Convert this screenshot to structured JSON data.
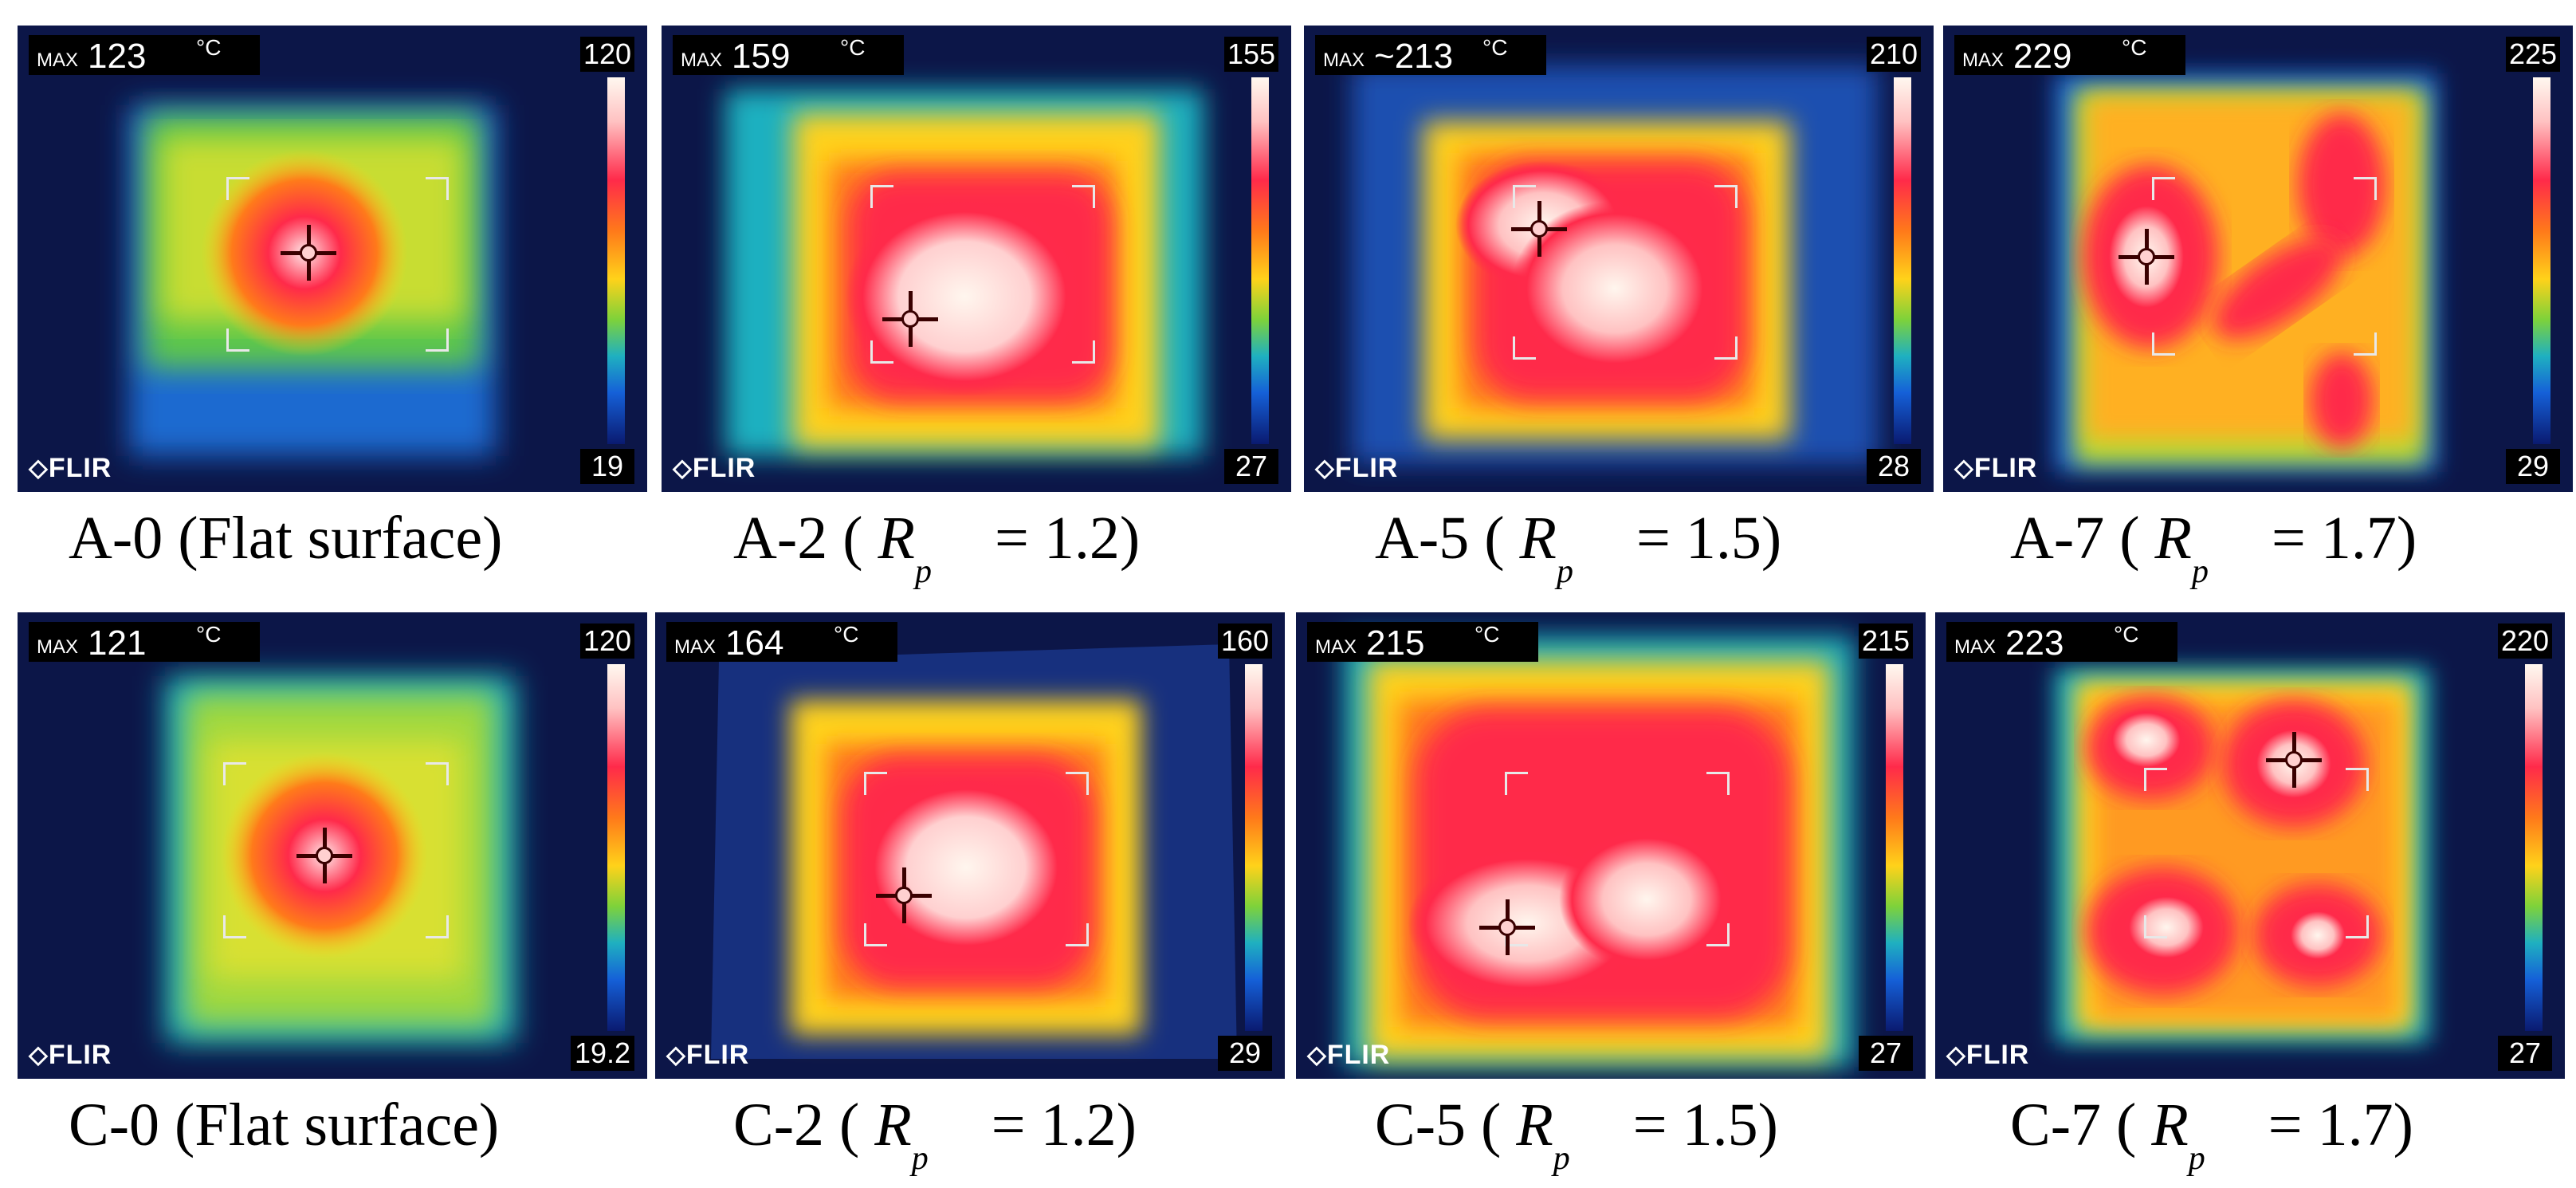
{
  "panels": [
    {
      "id": "A-0",
      "max_label": "MAX",
      "max_value": "123",
      "unit": "°C",
      "scale_max": "120",
      "scale_min": "19",
      "brand": "FLIR",
      "caption_prefix": "A-0 (Flat surface)",
      "caption_symbol": "",
      "caption_sub": "",
      "caption_suffix": ""
    },
    {
      "id": "A-2",
      "max_label": "MAX",
      "max_value": "159",
      "unit": "°C",
      "scale_max": "155",
      "scale_min": "27",
      "brand": "FLIR",
      "caption_prefix": "A-2 (",
      "caption_symbol": "R",
      "caption_sub": "p",
      "caption_suffix": "= 1.2)"
    },
    {
      "id": "A-5",
      "max_label": "MAX",
      "max_value": "~213",
      "unit": "°C",
      "scale_max": "210",
      "scale_min": "28",
      "brand": "FLIR",
      "caption_prefix": "A-5 (",
      "caption_symbol": "R",
      "caption_sub": "p",
      "caption_suffix": "= 1.5)"
    },
    {
      "id": "A-7",
      "max_label": "MAX",
      "max_value": "229",
      "unit": "°C",
      "scale_max": "225",
      "scale_min": "29",
      "brand": "FLIR",
      "caption_prefix": "A-7 (",
      "caption_symbol": "R",
      "caption_sub": "p",
      "caption_suffix": "= 1.7)"
    },
    {
      "id": "C-0",
      "max_label": "MAX",
      "max_value": "121",
      "unit": "°C",
      "scale_max": "120",
      "scale_min": "19.2",
      "brand": "FLIR",
      "caption_prefix": "C-0 (Flat surface)",
      "caption_symbol": "",
      "caption_sub": "",
      "caption_suffix": ""
    },
    {
      "id": "C-2",
      "max_label": "MAX",
      "max_value": "164",
      "unit": "°C",
      "scale_max": "160",
      "scale_min": "29",
      "brand": "FLIR",
      "caption_prefix": "C-2 (",
      "caption_symbol": "R",
      "caption_sub": "p",
      "caption_suffix": "= 1.2)"
    },
    {
      "id": "C-5",
      "max_label": "MAX",
      "max_value": "215",
      "unit": "°C",
      "scale_max": "215",
      "scale_min": "27",
      "brand": "FLIR",
      "caption_prefix": "C-5 (",
      "caption_symbol": "R",
      "caption_sub": "p",
      "caption_suffix": "= 1.5)"
    },
    {
      "id": "C-7",
      "max_label": "MAX",
      "max_value": "223",
      "unit": "°C",
      "scale_max": "220",
      "scale_min": "27",
      "brand": "FLIR",
      "caption_prefix": "C-7 (",
      "caption_symbol": "R",
      "caption_sub": "p",
      "caption_suffix": "= 1.7)"
    }
  ],
  "colors": {
    "background": "#0c1648",
    "hot": "#ff2a4a",
    "warm": "#ffd21a",
    "cool": "#1560d8",
    "white_hot": "#fff6ee"
  }
}
